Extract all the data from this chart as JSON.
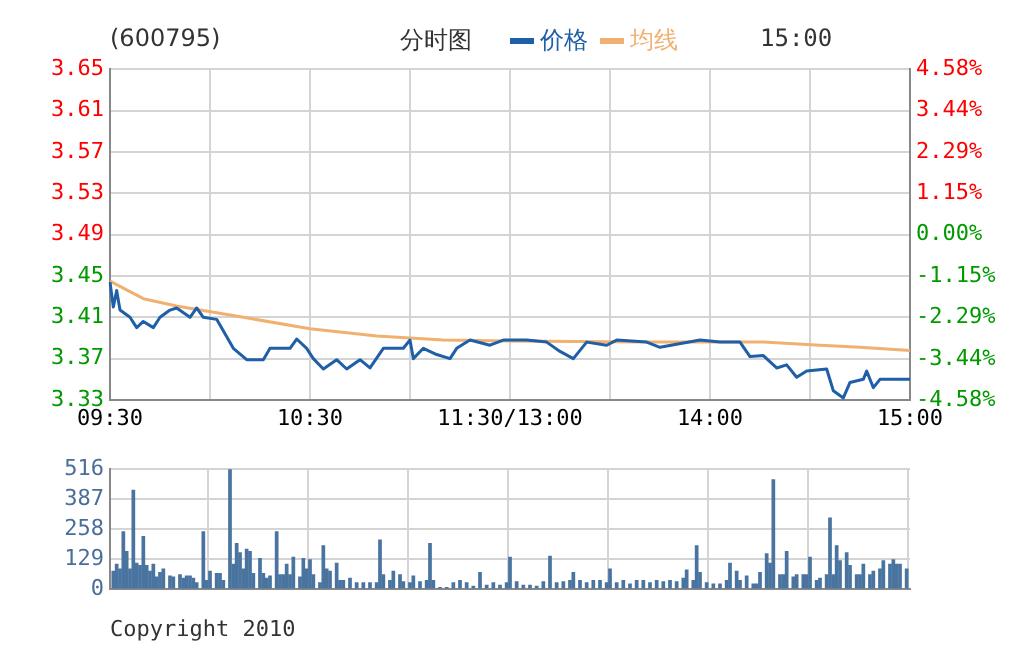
{
  "chart_data": [
    {
      "type": "line",
      "title": "分时图",
      "subtitle": "(600795)",
      "annotations": [
        "15:00"
      ],
      "legend": "top",
      "grid": true,
      "categories": [
        "09:30",
        null,
        null,
        null,
        null,
        null,
        null,
        null,
        null,
        null,
        null,
        null,
        null,
        null,
        null,
        null,
        null,
        null,
        null,
        null,
        null,
        null,
        null,
        null,
        null,
        null,
        null,
        null,
        null,
        null,
        null,
        null,
        null,
        null,
        null,
        null,
        null,
        null,
        null,
        null,
        null,
        null,
        null,
        null,
        null,
        null,
        null,
        null,
        null,
        null,
        null,
        null,
        null,
        null,
        null,
        null,
        null,
        null,
        null,
        null,
        "10:30",
        null,
        null,
        null,
        null,
        null,
        null,
        null,
        null,
        null,
        null,
        null,
        null,
        null,
        null,
        null,
        null,
        null,
        null,
        null,
        null,
        null,
        null,
        null,
        null,
        null,
        null,
        null,
        null,
        null,
        null,
        null,
        null,
        null,
        null,
        null,
        null,
        null,
        null,
        null,
        null,
        null,
        null,
        null,
        null,
        null,
        null,
        null,
        null,
        null,
        null,
        null,
        null,
        null,
        null,
        null,
        null,
        null,
        null,
        null,
        "11:30/13:00",
        null,
        null,
        null,
        null,
        null,
        null,
        null,
        null,
        null,
        null,
        null,
        null,
        null,
        null,
        null,
        null,
        null,
        null,
        null,
        null,
        null,
        null,
        null,
        null,
        null,
        null,
        null,
        null,
        null,
        null,
        null,
        null,
        null,
        null,
        null,
        null,
        null,
        null,
        null,
        null,
        null,
        null,
        null,
        null,
        null,
        null,
        null,
        null,
        null,
        null,
        null,
        null,
        null,
        null,
        null,
        null,
        null,
        null,
        null,
        "14:00",
        null,
        null,
        null,
        null,
        null,
        null,
        null,
        null,
        null,
        null,
        null,
        null,
        null,
        null,
        null,
        null,
        null,
        null,
        null,
        null,
        null,
        null,
        null,
        null,
        null,
        null,
        null,
        null,
        null,
        null,
        null,
        null,
        null,
        null,
        null,
        null,
        null,
        null,
        null,
        null,
        null,
        null,
        null,
        null,
        null,
        null,
        null,
        null,
        null,
        null,
        null,
        null,
        null,
        null,
        null,
        null,
        null,
        null,
        null,
        "15:00"
      ],
      "ylim": [
        3.33,
        3.65
      ],
      "yticks": [
        3.33,
        3.37,
        3.41,
        3.45,
        3.49,
        3.53,
        3.57,
        3.61,
        3.65
      ],
      "y2lim": [
        -4.58,
        4.58
      ],
      "y2ticks": [
        {
          "value": -4.58,
          "label": "-4.58%"
        },
        {
          "value": -3.44,
          "label": "-3.44%"
        },
        {
          "value": -2.29,
          "label": "-2.29%"
        },
        {
          "value": -1.15,
          "label": "-1.15%"
        },
        {
          "value": 0,
          "label": "0.00%"
        },
        {
          "value": 1.15,
          "label": "1.15%"
        },
        {
          "value": 2.29,
          "label": "2.29%"
        },
        {
          "value": 3.44,
          "label": "3.44%"
        },
        {
          "value": 4.58,
          "label": "4.58%"
        }
      ],
      "series": [
        {
          "name": "价格",
          "color": "#1f5fa8",
          "values": [
            3.444,
            3.42,
            3.436,
            3.417,
            null,
            null,
            3.41,
            null,
            3.4,
            null,
            3.406,
            null,
            null,
            3.4,
            null,
            3.41,
            null,
            null,
            3.417,
            null,
            3.419,
            null,
            null,
            null,
            3.41,
            null,
            3.419,
            null,
            3.41,
            null,
            null,
            null,
            3.408,
            null,
            null,
            null,
            null,
            3.38,
            null,
            null,
            null,
            3.369,
            null,
            null,
            null,
            null,
            3.369,
            null,
            3.38,
            null,
            null,
            null,
            null,
            null,
            3.38,
            null,
            3.389,
            null,
            null,
            3.38,
            null,
            3.37,
            null,
            null,
            3.36,
            null,
            null,
            null,
            3.369,
            null,
            null,
            3.36,
            null,
            null,
            null,
            3.369,
            null,
            null,
            3.361,
            null,
            null,
            null,
            3.38,
            null,
            null,
            null,
            null,
            null,
            3.38,
            null,
            3.388,
            3.37,
            null,
            null,
            3.38,
            null,
            null,
            null,
            3.374,
            null,
            null,
            null,
            3.37,
            null,
            3.38,
            null,
            null,
            null,
            3.388,
            null,
            null,
            null,
            null,
            null,
            3.383,
            null,
            null,
            null,
            3.388,
            null,
            null,
            null,
            null,
            null,
            null,
            3.388,
            null,
            null,
            null,
            null,
            null,
            3.386,
            null,
            null,
            null,
            3.377,
            null,
            null,
            null,
            3.37,
            null,
            null,
            null,
            3.386,
            null,
            null,
            null,
            null,
            null,
            3.383,
            null,
            null,
            3.388,
            null,
            null,
            null,
            null,
            null,
            null,
            null,
            null,
            3.386,
            null,
            null,
            null,
            3.381,
            null,
            null,
            null,
            null,
            null,
            null,
            null,
            null,
            null,
            null,
            null,
            3.388,
            null,
            null,
            null,
            null,
            null,
            3.386,
            null,
            null,
            null,
            null,
            null,
            3.386,
            null,
            null,
            3.372,
            null,
            null,
            null,
            3.373,
            null,
            null,
            null,
            3.361,
            null,
            null,
            3.364,
            null,
            null,
            3.352,
            null,
            null,
            3.358,
            null,
            null,
            null,
            null,
            null,
            3.36,
            null,
            3.339,
            null,
            null,
            3.332,
            null,
            3.347,
            null,
            null,
            null,
            3.35,
            3.358,
            null,
            3.342,
            null,
            3.35,
            null,
            null,
            null,
            null,
            null,
            null,
            null,
            null,
            3.35
          ]
        },
        {
          "name": "均线",
          "color": "#f0b070",
          "values": [
            3.445,
            null,
            null,
            null,
            null,
            null,
            null,
            null,
            null,
            null,
            3.428,
            null,
            null,
            null,
            null,
            null,
            null,
            null,
            null,
            null,
            3.421,
            null,
            null,
            null,
            null,
            null,
            null,
            null,
            null,
            null,
            null,
            null,
            null,
            null,
            null,
            null,
            null,
            null,
            null,
            null,
            3.41,
            null,
            null,
            null,
            null,
            null,
            null,
            null,
            null,
            null,
            null,
            null,
            null,
            null,
            null,
            null,
            null,
            null,
            null,
            null,
            3.399,
            null,
            null,
            null,
            null,
            null,
            null,
            null,
            null,
            null,
            null,
            null,
            null,
            null,
            null,
            null,
            null,
            null,
            null,
            null,
            3.392,
            null,
            null,
            null,
            null,
            null,
            null,
            null,
            null,
            null,
            null,
            null,
            null,
            null,
            null,
            null,
            null,
            null,
            null,
            null,
            3.388,
            null,
            null,
            null,
            null,
            null,
            null,
            null,
            null,
            null,
            null,
            null,
            null,
            null,
            null,
            null,
            null,
            null,
            null,
            null,
            3.387,
            null,
            null,
            null,
            null,
            null,
            null,
            null,
            null,
            null,
            null,
            null,
            null,
            null,
            null,
            null,
            null,
            null,
            null,
            null,
            null,
            null,
            null,
            null,
            null,
            null,
            null,
            null,
            null,
            null,
            null,
            null,
            null,
            null,
            null,
            null,
            null,
            null,
            null,
            null,
            3.386,
            null,
            null,
            null,
            null,
            null,
            null,
            null,
            null,
            null,
            null,
            null,
            null,
            null,
            null,
            null,
            null,
            null,
            null,
            null,
            null,
            null,
            null,
            null,
            null,
            null,
            null,
            null,
            null,
            null,
            null,
            null,
            null,
            null,
            null,
            null,
            3.386,
            null,
            null,
            null,
            null,
            null,
            null,
            null,
            null,
            null,
            null,
            null,
            null,
            null,
            null,
            null,
            null,
            3.383,
            null,
            null,
            null,
            null,
            null,
            null,
            null,
            null,
            null,
            null,
            null,
            3.381,
            null,
            null,
            null,
            null,
            null,
            null,
            null,
            null,
            null,
            null,
            null,
            null,
            null,
            null,
            3.378
          ]
        }
      ]
    },
    {
      "type": "bar",
      "annotations": [
        "Copyright 2010"
      ],
      "grid": true,
      "tick_labels": "y",
      "color": "#4a74a0",
      "categories": [
        null,
        null,
        null,
        null,
        null,
        null,
        null,
        null,
        null,
        null,
        null,
        null,
        null,
        null,
        null,
        null,
        null,
        null,
        null,
        null,
        null,
        null,
        null,
        null,
        null,
        null,
        null,
        null,
        null,
        null,
        null,
        null,
        null,
        null,
        null,
        null,
        null,
        null,
        null,
        null,
        null,
        null,
        null,
        null,
        null,
        null,
        null,
        null,
        null,
        null,
        null,
        null,
        null,
        null,
        null,
        null,
        null,
        null,
        null,
        null,
        null,
        null,
        null,
        null,
        null,
        null,
        null,
        null,
        null,
        null,
        null,
        null,
        null,
        null,
        null,
        null,
        null,
        null,
        null,
        null,
        null,
        null,
        null,
        null,
        null,
        null,
        null,
        null,
        null,
        null,
        null,
        null,
        null,
        null,
        null,
        null,
        null,
        null,
        null,
        null,
        null,
        null,
        null,
        null,
        null,
        null,
        null,
        null,
        null,
        null,
        null,
        null,
        null,
        null,
        null,
        null,
        null,
        null,
        null,
        null,
        null,
        null,
        null,
        null,
        null,
        null,
        null,
        null,
        null,
        null,
        null,
        null,
        null,
        null,
        null,
        null,
        null,
        null,
        null,
        null,
        null,
        null,
        null,
        null,
        null,
        null,
        null,
        null,
        null,
        null,
        null,
        null,
        null,
        null,
        null,
        null,
        null,
        null,
        null,
        null,
        null,
        null,
        null,
        null,
        null,
        null,
        null,
        null,
        null,
        null,
        null,
        null,
        null,
        null,
        null,
        null,
        null,
        null,
        null,
        null,
        null,
        null,
        null,
        null,
        null,
        null,
        null,
        null,
        null,
        null,
        null,
        null,
        null,
        null,
        null,
        null,
        null,
        null,
        null,
        null,
        null,
        null,
        null,
        null,
        null,
        null,
        null,
        null,
        null,
        null,
        null,
        null,
        null,
        null,
        null,
        null,
        null,
        null,
        null,
        null,
        null,
        null,
        null,
        null,
        null,
        null,
        null,
        null,
        null,
        null,
        null,
        null,
        null,
        null,
        null,
        null,
        null,
        null,
        null,
        null,
        null
      ],
      "ylim": [
        0,
        516
      ],
      "yticks": [
        0,
        129,
        258,
        387,
        516
      ],
      "values": [
        null,
        75,
        105,
        85,
        245,
        160,
        85,
        425,
        110,
        100,
        225,
        100,
        75,
        105,
        50,
        70,
        85,
        null,
        55,
        50,
        null,
        60,
        45,
        55,
        55,
        45,
        25,
        null,
        245,
        35,
        75,
        null,
        65,
        65,
        35,
        null,
        516,
        105,
        195,
        155,
        85,
        170,
        160,
        65,
        null,
        130,
        65,
        45,
        55,
        null,
        245,
        60,
        60,
        105,
        60,
        135,
        null,
        50,
        130,
        85,
        125,
        60,
        null,
        25,
        185,
        85,
        75,
        null,
        110,
        35,
        35,
        null,
        45,
        null,
        25,
        null,
        25,
        null,
        25,
        null,
        25,
        210,
        60,
        null,
        35,
        75,
        null,
        60,
        30,
        null,
        25,
        55,
        null,
        30,
        null,
        35,
        195,
        35,
        null,
        5,
        null,
        5,
        null,
        25,
        null,
        35,
        null,
        25,
        null,
        10,
        null,
        70,
        null,
        15,
        null,
        25,
        null,
        15,
        null,
        25,
        135,
        null,
        30,
        null,
        15,
        null,
        15,
        null,
        10,
        null,
        30,
        null,
        140,
        null,
        25,
        null,
        30,
        null,
        35,
        70,
        null,
        35,
        null,
        25,
        null,
        35,
        null,
        35,
        null,
        25,
        85,
        null,
        25,
        null,
        35,
        null,
        20,
        null,
        35,
        null,
        35,
        null,
        25,
        null,
        35,
        null,
        30,
        null,
        35,
        null,
        30,
        null,
        45,
        80,
        null,
        35,
        185,
        70,
        null,
        25,
        null,
        20,
        null,
        20,
        null,
        35,
        110,
        null,
        75,
        35,
        null,
        55,
        null,
        20,
        20,
        70,
        null,
        150,
        110,
        470,
        null,
        60,
        60,
        160,
        null,
        50,
        60,
        null,
        60,
        60,
        135,
        null,
        35,
        45,
        null,
        60,
        305,
        60,
        185,
        120,
        null,
        155,
        100,
        null,
        60,
        60,
        105,
        null,
        60,
        75,
        null,
        85,
        120,
        null,
        105,
        125,
        105,
        105,
        null,
        85,
        null
      ]
    }
  ]
}
